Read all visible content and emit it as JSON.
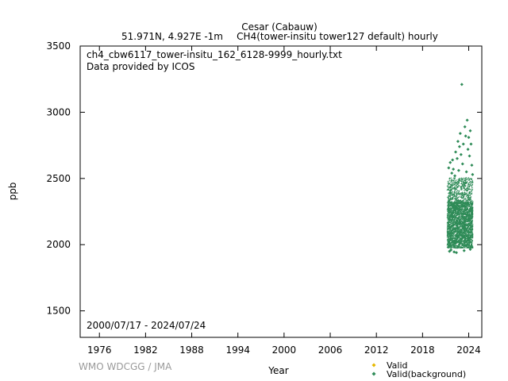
{
  "header": {
    "station": "Cesar (Cabauw)",
    "location": "51.971N, 4.927E -1m",
    "species": "CH4(tower-insitu tower127 default) hourly"
  },
  "plot_info": {
    "filename": "ch4_cbw6117_tower-insitu_162_6128-9999_hourly.txt",
    "provider": "Data provided by ICOS",
    "date_range": "2000/07/17 - 2024/07/24"
  },
  "watermark": "WMO WDCGG / JMA",
  "chart_data": {
    "type": "scatter",
    "xlabel": "Year",
    "ylabel": "ppb",
    "xlim": [
      1973.5,
      2025.7
    ],
    "ylim": [
      1300,
      3500
    ],
    "x_ticks": [
      1976,
      1982,
      1988,
      1994,
      2000,
      2006,
      2012,
      2018,
      2024
    ],
    "y_ticks": [
      1500,
      2000,
      2500,
      3000,
      3500
    ],
    "grid": false,
    "legend_position": "bottom-right",
    "series": [
      {
        "name": "Valid",
        "color": "#e6b800",
        "marker": "diamond",
        "points": []
      },
      {
        "name": "Valid(background)",
        "color": "#2e8b57",
        "marker": "diamond",
        "band": {
          "x_start": 2021.3,
          "x_end": 2024.6,
          "y_low": 1970,
          "y_high": 2320,
          "y_extreme_high": 2500
        },
        "outliers": [
          [
            2023.1,
            3210
          ],
          [
            2023.8,
            2940
          ],
          [
            2023.5,
            2890
          ],
          [
            2024.2,
            2860
          ],
          [
            2022.9,
            2840
          ],
          [
            2023.6,
            2820
          ],
          [
            2024.0,
            2810
          ],
          [
            2022.6,
            2780
          ],
          [
            2023.3,
            2760
          ],
          [
            2024.3,
            2760
          ],
          [
            2022.8,
            2740
          ],
          [
            2023.9,
            2720
          ],
          [
            2022.3,
            2700
          ],
          [
            2023.0,
            2680
          ],
          [
            2024.1,
            2670
          ],
          [
            2022.5,
            2650
          ],
          [
            2021.9,
            2640
          ],
          [
            2021.6,
            2620
          ],
          [
            2023.2,
            2610
          ],
          [
            2024.4,
            2600
          ],
          [
            2021.4,
            2580
          ],
          [
            2022.0,
            2570
          ],
          [
            2022.7,
            2560
          ],
          [
            2023.7,
            2550
          ],
          [
            2021.8,
            2540
          ],
          [
            2024.5,
            2530
          ],
          [
            2022.2,
            2520
          ],
          [
            2021.5,
            1950
          ],
          [
            2022.1,
            1945
          ],
          [
            2022.4,
            1940
          ],
          [
            2023.4,
            1955
          ],
          [
            2021.7,
            1960
          ],
          [
            2024.2,
            1965
          ]
        ]
      }
    ]
  }
}
